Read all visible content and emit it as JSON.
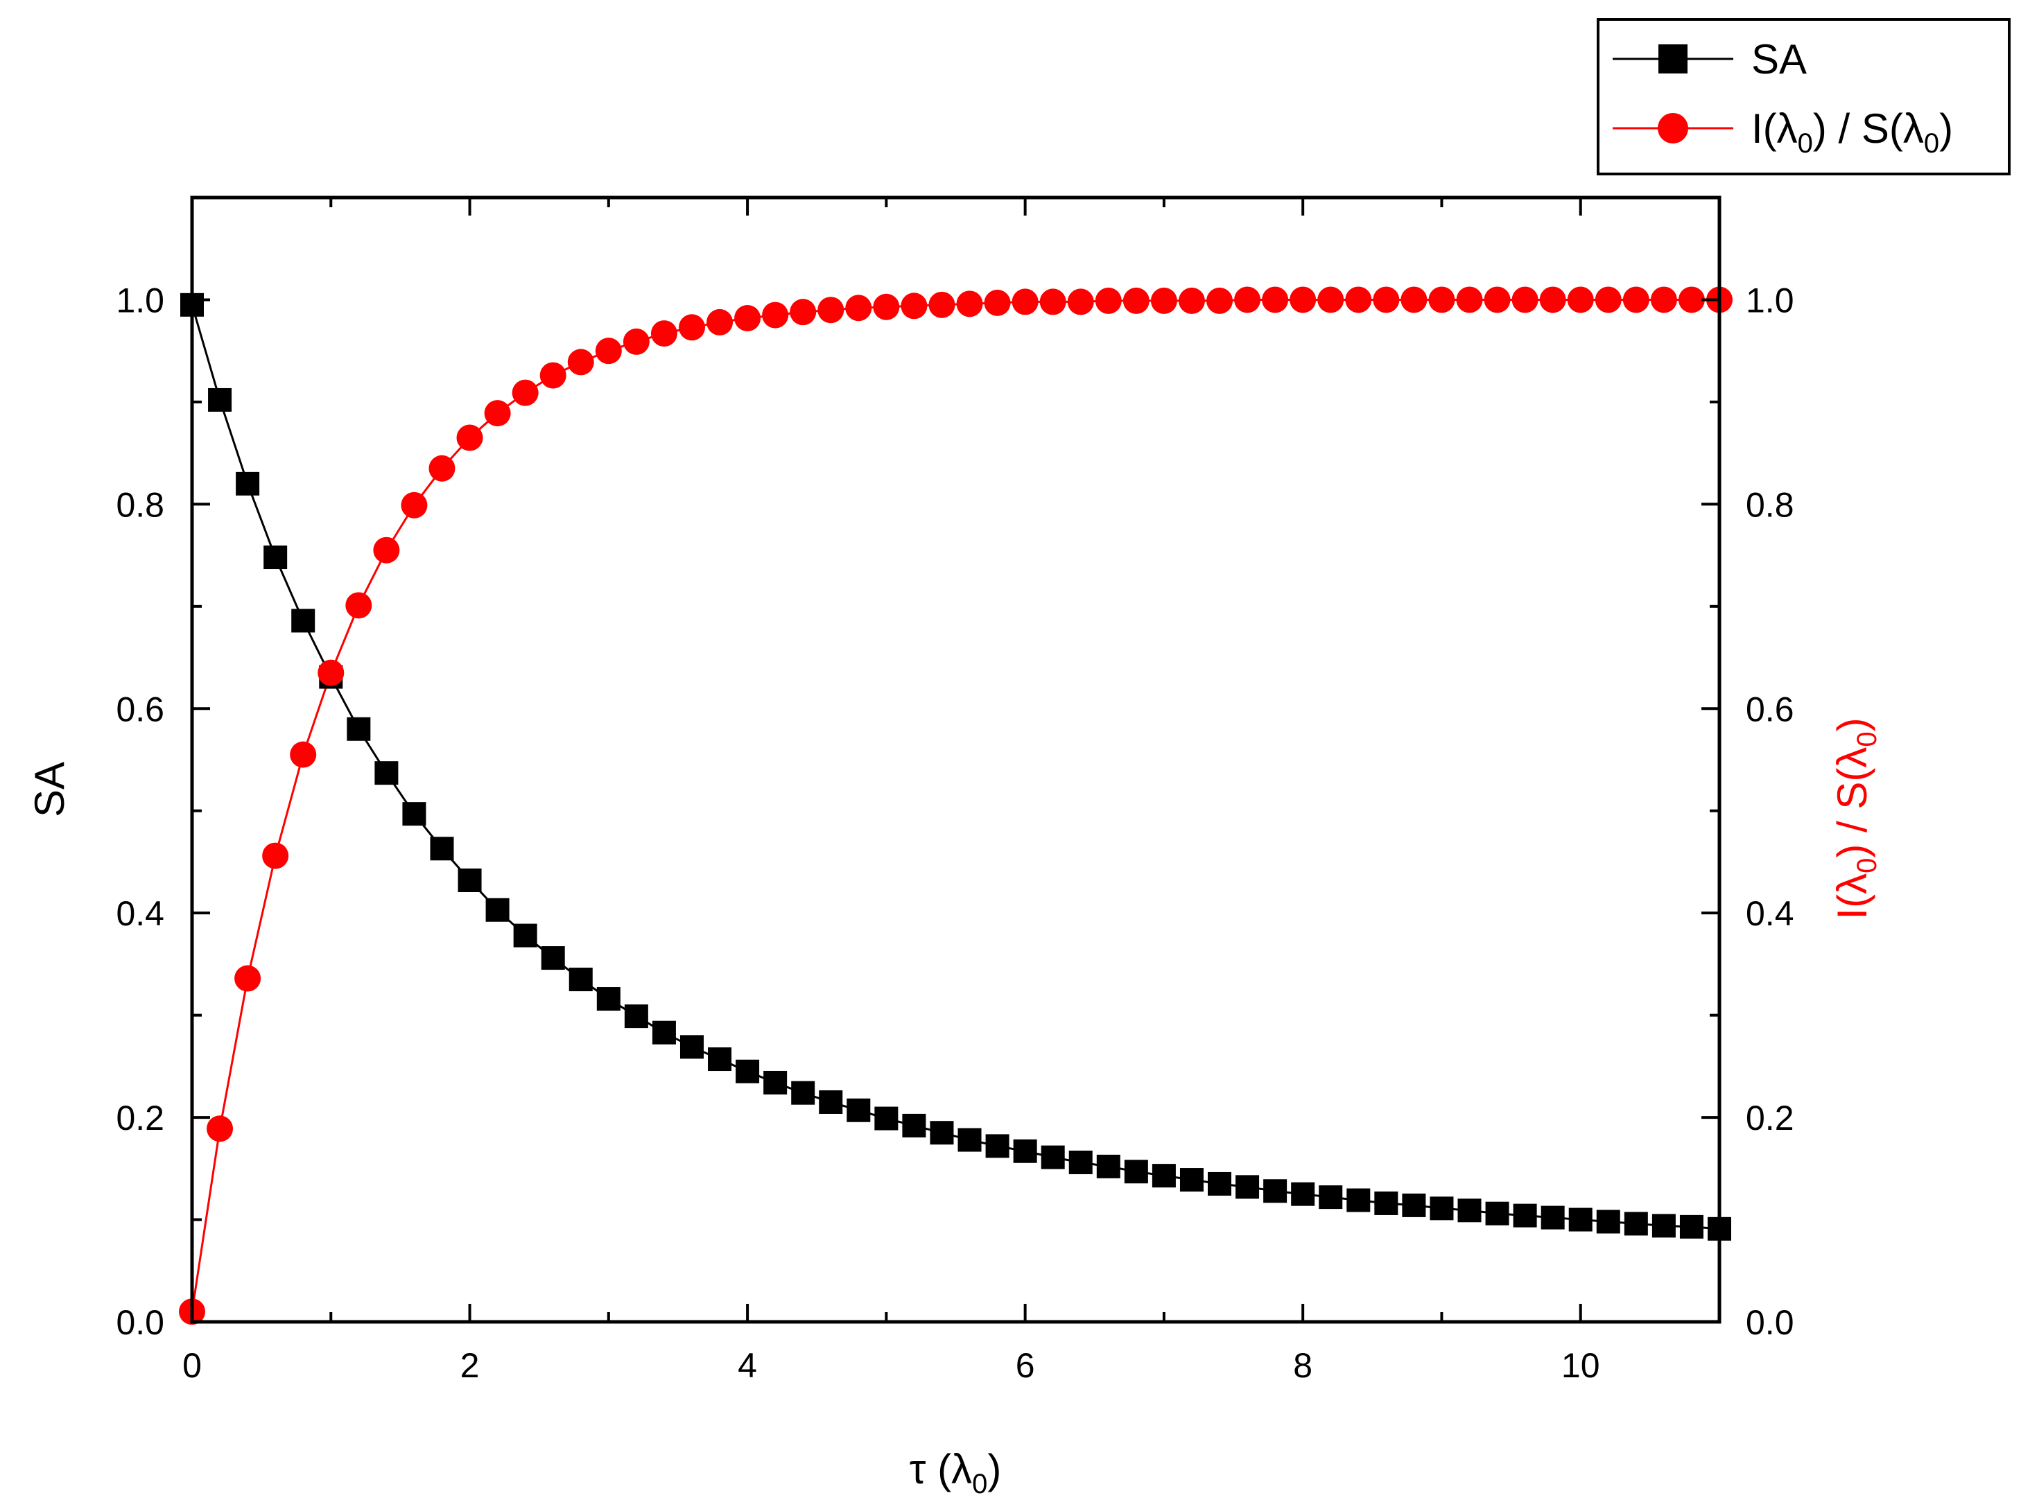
{
  "chart_data": {
    "type": "line",
    "title": "",
    "xlabel": {
      "main": "τ (λ",
      "sub": "0",
      "end": ")"
    },
    "ylabel_left": "SA",
    "ylabel_right": {
      "p1": "I(λ",
      "s1": "0",
      "p2": ") / S(λ",
      "s2": "0",
      "p3": ")"
    },
    "xlim": [
      0,
      11
    ],
    "ylim_left": [
      0,
      1.1
    ],
    "ylim_right": [
      0,
      1.1
    ],
    "x_ticks": [
      "0",
      "2",
      "4",
      "6",
      "8",
      "10"
    ],
    "y_ticks_left": [
      "0.0",
      "0.2",
      "0.4",
      "0.6",
      "0.8",
      "1.0"
    ],
    "y_ticks_right": [
      "0.0",
      "0.2",
      "0.4",
      "0.6",
      "0.8",
      "1.0"
    ],
    "legend_position": "top-right",
    "x": [
      0.0,
      0.2,
      0.4,
      0.6,
      0.8,
      1.0,
      1.2,
      1.4,
      1.6,
      1.8,
      2.0,
      2.2,
      2.4,
      2.6,
      2.8,
      3.0,
      3.2,
      3.4,
      3.6,
      3.8,
      4.0,
      4.2,
      4.4,
      4.6,
      4.8,
      5.0,
      5.2,
      5.4,
      5.6,
      5.8,
      6.0,
      6.2,
      6.4,
      6.6,
      6.8,
      7.0,
      7.2,
      7.4,
      7.6,
      7.8,
      8.0,
      8.2,
      8.4,
      8.6,
      8.8,
      9.0,
      9.2,
      9.4,
      9.6,
      9.8,
      10.0,
      10.2,
      10.4,
      10.6,
      10.8,
      11.0
    ],
    "series": [
      {
        "name": "SA",
        "axis": "left",
        "color": "#000000",
        "marker": "square",
        "values": [
          0.995,
          0.902,
          0.82,
          0.748,
          0.686,
          0.631,
          0.58,
          0.537,
          0.497,
          0.463,
          0.432,
          0.403,
          0.378,
          0.356,
          0.335,
          0.316,
          0.299,
          0.283,
          0.269,
          0.257,
          0.245,
          0.234,
          0.224,
          0.215,
          0.207,
          0.199,
          0.192,
          0.185,
          0.178,
          0.172,
          0.167,
          0.161,
          0.156,
          0.152,
          0.147,
          0.143,
          0.139,
          0.135,
          0.132,
          0.128,
          0.125,
          0.122,
          0.119,
          0.116,
          0.114,
          0.111,
          0.109,
          0.106,
          0.104,
          0.102,
          0.1,
          0.098,
          0.096,
          0.094,
          0.093,
          0.091
        ]
      },
      {
        "name": "I(λ0) / S(λ0)",
        "label_parts": {
          "p1": "I(λ",
          "s1": "0",
          "p2": ") / S(λ",
          "s2": "0",
          "p3": ")"
        },
        "axis": "right",
        "color": "#ff0000",
        "marker": "circle",
        "values": [
          0.01,
          0.189,
          0.336,
          0.456,
          0.555,
          0.635,
          0.701,
          0.755,
          0.799,
          0.835,
          0.865,
          0.889,
          0.909,
          0.926,
          0.939,
          0.95,
          0.959,
          0.967,
          0.973,
          0.978,
          0.982,
          0.985,
          0.988,
          0.99,
          0.992,
          0.993,
          0.994,
          0.995,
          0.996,
          0.997,
          0.998,
          0.998,
          0.998,
          0.999,
          0.999,
          0.999,
          0.999,
          0.999,
          1.0,
          1.0,
          1.0,
          1.0,
          1.0,
          1.0,
          1.0,
          1.0,
          1.0,
          1.0,
          1.0,
          1.0,
          1.0,
          1.0,
          1.0,
          1.0,
          1.0,
          1.0
        ]
      }
    ]
  }
}
